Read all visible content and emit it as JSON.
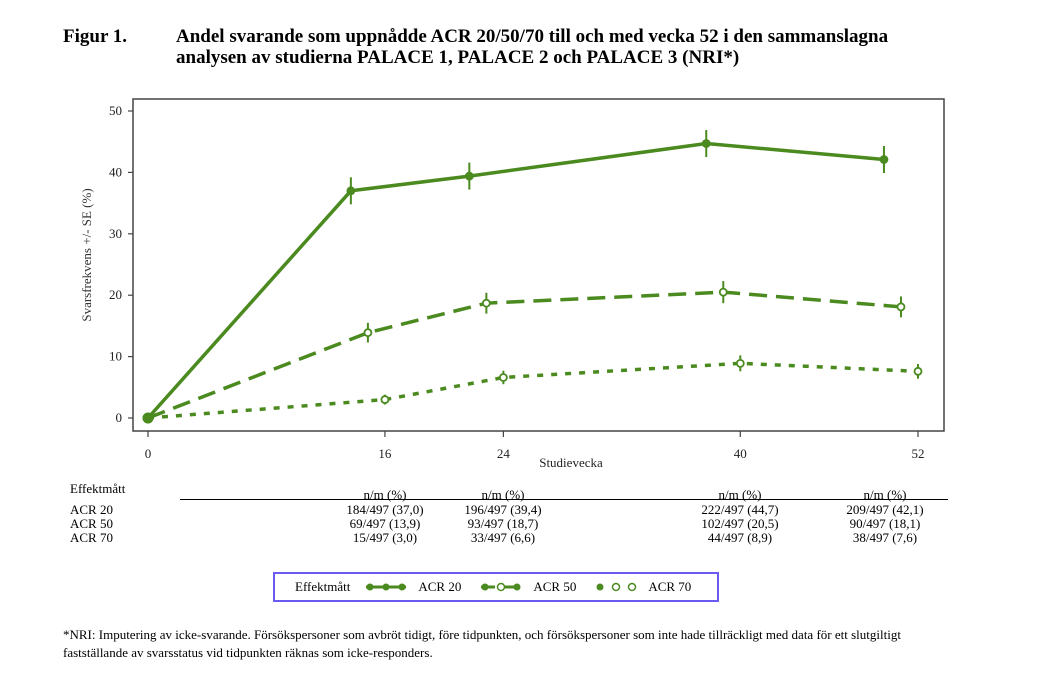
{
  "figure": {
    "label": "Figur 1.",
    "title": "Andel svarande som uppnådde ACR 20/50/70 till och med vecka 52 i den sammanslagna analysen av studierna PALACE 1, PALACE 2 och PALACE 3 (NRI*)"
  },
  "chart_data": {
    "type": "line",
    "title": "Andel svarande som uppnådde ACR 20/50/70 till och med vecka 52 i den sammanslagna analysen av studierna PALACE 1, PALACE 2 och PALACE 3 (NRI*)",
    "xlabel": "Studievecka",
    "ylabel": "Svarsfrekvens +/- SE (%)",
    "x_ticks": [
      0,
      16,
      24,
      40,
      52
    ],
    "y_ticks": [
      0,
      10,
      20,
      30,
      40,
      50
    ],
    "xlim": [
      -0.5,
      53.5
    ],
    "ylim": [
      -2,
      52
    ],
    "grid": false,
    "legend_placement": "bottom",
    "color": "#4a8a1f",
    "x": [
      0,
      16,
      24,
      40,
      52
    ],
    "series": [
      {
        "name": "ACR 20",
        "style": "solid",
        "x_offset_weeks": -2.3,
        "values": [
          0,
          37.0,
          39.4,
          44.7,
          42.1
        ],
        "se": [
          0,
          2.2,
          2.2,
          2.2,
          2.2
        ]
      },
      {
        "name": "ACR 50",
        "style": "dashed",
        "x_offset_weeks": -1.15,
        "values": [
          0,
          13.9,
          18.7,
          20.5,
          18.1
        ],
        "se": [
          0,
          1.6,
          1.7,
          1.8,
          1.7
        ]
      },
      {
        "name": "ACR 70",
        "style": "dotted",
        "x_offset_weeks": 0,
        "values": [
          0,
          3.0,
          6.6,
          8.9,
          7.6
        ],
        "se": [
          0,
          0.8,
          1.1,
          1.3,
          1.2
        ]
      }
    ]
  },
  "table": {
    "header": "Effektmått",
    "column_header": "n/m (%)",
    "columns": [
      16,
      24,
      40,
      52
    ],
    "rows": [
      {
        "label": "ACR 20",
        "cells": [
          "184/497 (37,0)",
          "196/497 (39,4)",
          "222/497 (44,7)",
          "209/497 (42,1)"
        ]
      },
      {
        "label": "ACR 50",
        "cells": [
          "69/497 (13,9)",
          "93/497 (18,7)",
          "102/497 (20,5)",
          "90/497 (18,1)"
        ]
      },
      {
        "label": "ACR 70",
        "cells": [
          "15/497 (3,0)",
          "33/497 (6,6)",
          "44/497 (8,9)",
          "38/497 (7,6)"
        ]
      }
    ]
  },
  "legend": {
    "title": "Effektmått",
    "entries": [
      "ACR 20",
      "ACR 50",
      "ACR 70"
    ]
  },
  "footnote": "*NRI: Imputering av icke-svarande. Försökspersoner som avbröt tidigt, före tidpunkten, och försökspersoner som inte hade tillräckligt med data för ett slutgiltigt fastställande av svarsstatus vid tidpunkten räknas som icke-responders."
}
